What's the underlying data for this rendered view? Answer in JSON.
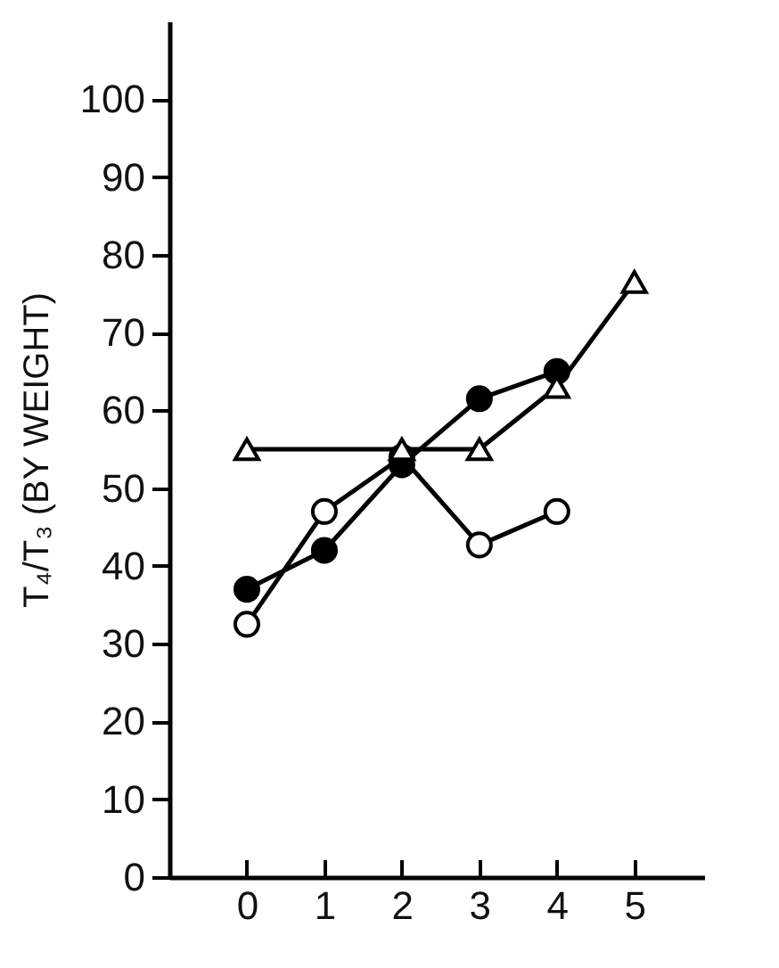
{
  "chart_data": {
    "type": "line",
    "ylabel": "T₄/T₃ (BY WEIGHT)",
    "xlim": [
      -1,
      5.9
    ],
    "xticks": [
      0,
      1,
      2,
      3,
      4,
      5
    ],
    "ylim": [
      0,
      110
    ],
    "yticks": [
      0,
      10,
      20,
      30,
      40,
      50,
      60,
      70,
      80,
      90,
      100
    ],
    "line_style": "solid",
    "series": [
      {
        "color": "#000000",
        "marker": "circle",
        "colors": [
          "#ffffff",
          "#ffffff",
          "#ffffff",
          "#ffffff",
          "#ffffff"
        ],
        "x": [
          0,
          1,
          2,
          3,
          4
        ],
        "values": [
          32.5,
          47,
          54,
          42.7,
          47
        ]
      },
      {
        "color": "#000000",
        "marker": "circle",
        "colors": [
          "#000000",
          "#000000",
          "#000000",
          "#000000",
          "#000000"
        ],
        "x": [
          0,
          1,
          2,
          3,
          4
        ],
        "values": [
          37,
          42,
          53,
          61.5,
          65
        ]
      },
      {
        "color": "#000000",
        "marker": "triangle",
        "colors": [
          "#ffffff",
          "#ffffff",
          "#ffffff",
          "#ffffff",
          "#ffffff"
        ],
        "x": [
          0,
          2,
          3,
          4,
          5
        ],
        "values": [
          55,
          55,
          55,
          63,
          76.5
        ]
      }
    ]
  }
}
